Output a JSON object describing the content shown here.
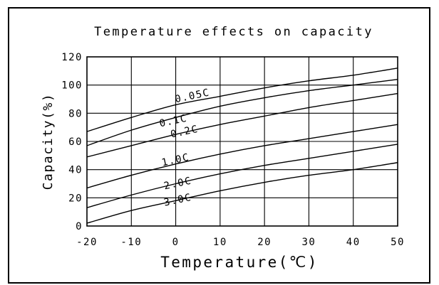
{
  "chart_data": {
    "type": "line",
    "title": "Temperature effects on capacity",
    "xlabel": "Temperature(℃)",
    "ylabel": "Capacity(%)",
    "xlim": [
      -20,
      50
    ],
    "ylim": [
      0,
      120
    ],
    "xticks": [
      -20,
      -10,
      0,
      10,
      20,
      30,
      40,
      50
    ],
    "yticks": [
      0,
      20,
      40,
      60,
      80,
      100,
      120
    ],
    "xtick_labels": [
      "-20",
      "-10",
      "0",
      "10",
      "20",
      "30",
      "40",
      "50"
    ],
    "ytick_labels": [
      "0",
      "20",
      "40",
      "60",
      "80",
      "100",
      "120"
    ],
    "grid": true,
    "legend": "none",
    "series": [
      {
        "name": "0.05C",
        "x": [
          -20,
          -10,
          0,
          10,
          20,
          30,
          40,
          50
        ],
        "y": [
          67,
          77,
          86,
          92,
          98,
          103,
          107,
          112
        ]
      },
      {
        "name": "0.1C",
        "x": [
          -20,
          -10,
          0,
          10,
          20,
          30,
          40,
          50
        ],
        "y": [
          57,
          68,
          77,
          85,
          91,
          96,
          100,
          104
        ]
      },
      {
        "name": "0.2C",
        "x": [
          -20,
          -10,
          0,
          10,
          20,
          30,
          40,
          50
        ],
        "y": [
          49,
          57,
          65,
          72,
          78,
          84,
          89,
          94
        ]
      },
      {
        "name": "1.0C",
        "x": [
          -20,
          -10,
          0,
          10,
          20,
          30,
          40,
          50
        ],
        "y": [
          27,
          36,
          44,
          51,
          57,
          62,
          67,
          72
        ]
      },
      {
        "name": "2.0C",
        "x": [
          -20,
          -10,
          0,
          10,
          20,
          30,
          40,
          50
        ],
        "y": [
          13,
          22,
          30,
          37,
          43,
          48,
          53,
          58
        ]
      },
      {
        "name": "3.0C",
        "x": [
          -20,
          -10,
          0,
          10,
          20,
          30,
          40,
          50
        ],
        "y": [
          2,
          11,
          18,
          25,
          31,
          36,
          40,
          45
        ]
      }
    ],
    "line_color": "#000000"
  }
}
